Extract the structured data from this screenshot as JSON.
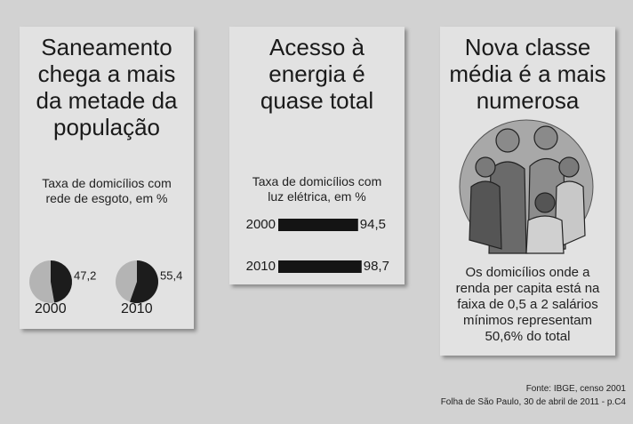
{
  "chart_data": [
    {
      "type": "pie",
      "title": "Saneamento chega a mais da metade da população",
      "subtitle": "Taxa de domicílios com rede de esgoto, em %",
      "categories": [
        "2000",
        "2010"
      ],
      "values": [
        47.2,
        55.4
      ],
      "value_labels": [
        "47,2",
        "55,4"
      ],
      "color": "#1c1c1c",
      "rest_color": "#b4b4b4"
    },
    {
      "type": "bar",
      "title": "Acesso à energia é quase total",
      "subtitle": "Taxa de domicílios com luz elétrica, em %",
      "categories": [
        "2000",
        "2010"
      ],
      "values": [
        94.5,
        98.7
      ],
      "value_labels": [
        "94,5",
        "98,7"
      ],
      "color": "#141414"
    }
  ],
  "panel": {
    "title": "Nova classe média é a mais numerosa",
    "text": "Os domicílios onde a renda per capita está na faixa de 0,5 a 2 salários mínimos representam 50,6% do total"
  },
  "footer": {
    "source": "Fonte: IBGE, censo 2001",
    "credit": "Folha de São Paulo, 30 de abril de 2011 - p.C4"
  }
}
